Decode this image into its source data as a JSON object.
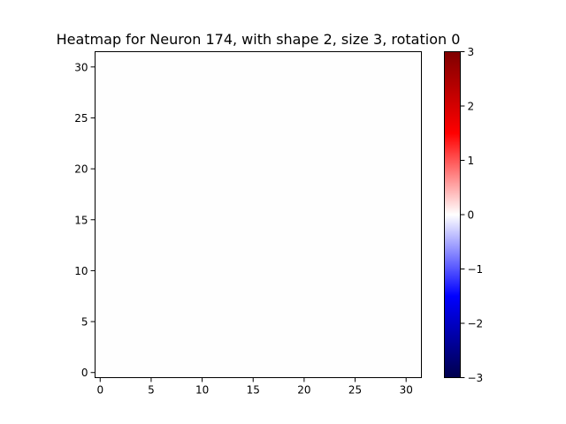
{
  "chart_data": {
    "type": "heatmap",
    "title": "Heatmap for Neuron 174, with shape 2, size 3, rotation 0",
    "xlabel": "",
    "ylabel": "",
    "rows": 32,
    "cols": 32,
    "fill_value": 0,
    "xlim": [
      -0.5,
      31.5
    ],
    "ylim": [
      31.5,
      -0.5
    ],
    "x_ticks": [
      0,
      5,
      10,
      15,
      20,
      25,
      30
    ],
    "y_ticks": [
      0,
      5,
      10,
      15,
      20,
      25,
      30
    ],
    "colormap": "seismic",
    "colorbar": {
      "vmin": -3,
      "vmax": 3,
      "ticks": [
        3,
        2,
        1,
        0,
        -1,
        -2,
        -3
      ],
      "tick_labels": [
        "3",
        "2",
        "1",
        "0",
        "−1",
        "−2",
        "−3"
      ]
    },
    "grid": false,
    "colors": {
      "cell": "#fefefe",
      "low": "#00004c",
      "mid": "#ffffff",
      "high": "#7f0000"
    }
  }
}
